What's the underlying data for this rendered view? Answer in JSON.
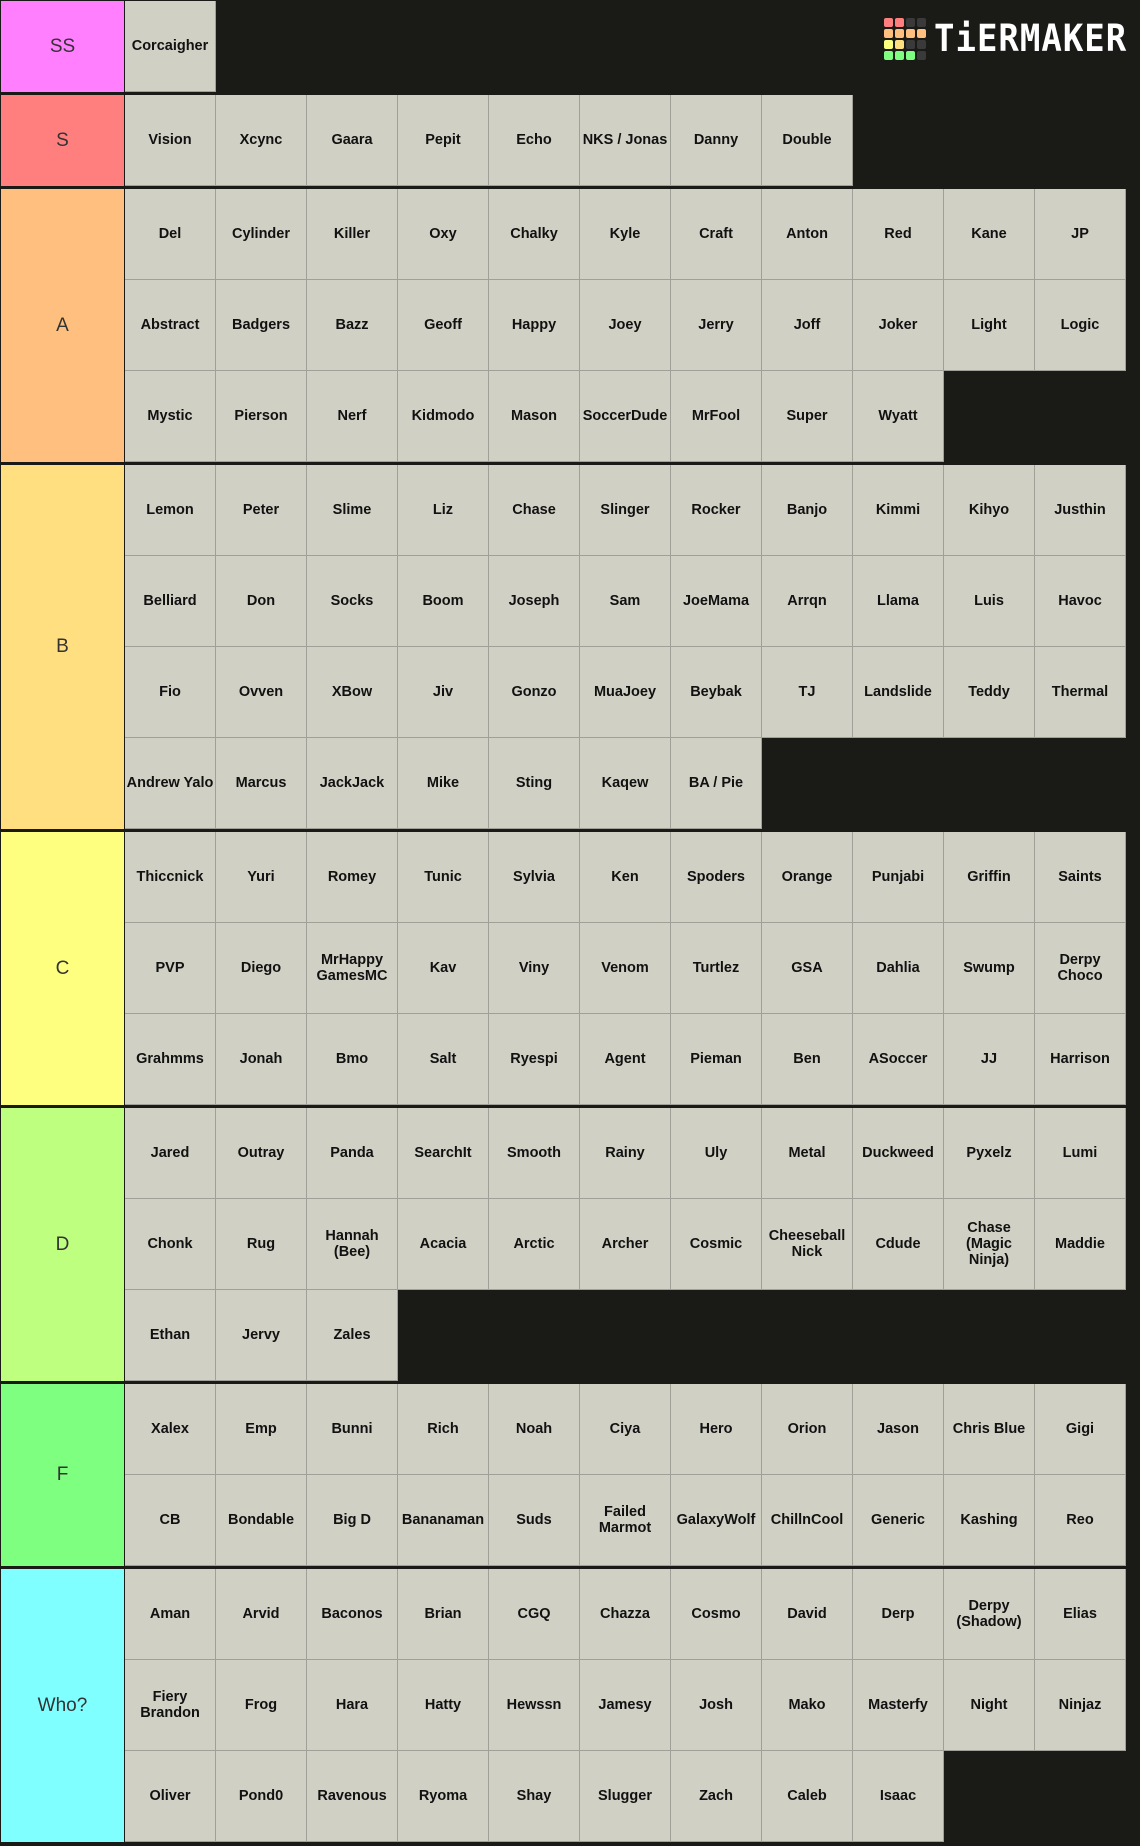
{
  "logo": {
    "text": "TiERMAKER",
    "colors": [
      "#ff7f7f",
      "#ff7f7f",
      "#3a3a3a",
      "#3a3a3a",
      "#ffbf7f",
      "#ffbf7f",
      "#ffbf7f",
      "#ffbf7f",
      "#ffff7f",
      "#ffdf7f",
      "#3a3a3a",
      "#3a3a3a",
      "#7fff7f",
      "#7fff7f",
      "#7fff7f",
      "#3a3a3a"
    ]
  },
  "tiers": [
    {
      "label": "SS",
      "color": "#ff7fff",
      "items": [
        "Corcaigher"
      ]
    },
    {
      "label": "S",
      "color": "#ff7f7f",
      "items": [
        "Vision",
        "Xcync",
        "Gaara",
        "Pepit",
        "Echo",
        "NKS / Jonas",
        "Danny",
        "Double"
      ]
    },
    {
      "label": "A",
      "color": "#ffbf7f",
      "items": [
        "Del",
        "Cylinder",
        "Killer",
        "Oxy",
        "Chalky",
        "Kyle",
        "Craft",
        "Anton",
        "Red",
        "Kane",
        "JP",
        "Abstract",
        "Badgers",
        "Bazz",
        "Geoff",
        "Happy",
        "Joey",
        "Jerry",
        "Joff",
        "Joker",
        "Light",
        "Logic",
        "Mystic",
        "Pierson",
        "Nerf",
        "Kidmodo",
        "Mason",
        "SoccerDude",
        "MrFool",
        "Super",
        "Wyatt"
      ]
    },
    {
      "label": "B",
      "color": "#ffdf7f",
      "items": [
        "Lemon",
        "Peter",
        "Slime",
        "Liz",
        "Chase",
        "Slinger",
        "Rocker",
        "Banjo",
        "Kimmi",
        "Kihyo",
        "Justhin",
        "Belliard",
        "Don",
        "Socks",
        "Boom",
        "Joseph",
        "Sam",
        "JoeMama",
        "Arrqn",
        "Llama",
        "Luis",
        "Havoc",
        "Fio",
        "Ovven",
        "XBow",
        "Jiv",
        "Gonzo",
        "MuaJoey",
        "Beybak",
        "TJ",
        "Landslide",
        "Teddy",
        "Thermal",
        "Andrew Yalo",
        "Marcus",
        "JackJack",
        "Mike",
        "Sting",
        "Kaqew",
        "BA / Pie"
      ]
    },
    {
      "label": "C",
      "color": "#ffff7f",
      "items": [
        "Thiccnick",
        "Yuri",
        "Romey",
        "Tunic",
        "Sylvia",
        "Ken",
        "Spoders",
        "Orange",
        "Punjabi",
        "Griffin",
        "Saints",
        "PVP",
        "Diego",
        "MrHappy GamesMC",
        "Kav",
        "Viny",
        "Venom",
        "Turtlez",
        "GSA",
        "Dahlia",
        "Swump",
        "Derpy Choco",
        "Grahmms",
        "Jonah",
        "Bmo",
        "Salt",
        "Ryespi",
        "Agent",
        "Pieman",
        "Ben",
        "ASoccer",
        "JJ",
        "Harrison"
      ]
    },
    {
      "label": "D",
      "color": "#bfff7f",
      "items": [
        "Jared",
        "Outray",
        "Panda",
        "SearchIt",
        "Smooth",
        "Rainy",
        "Uly",
        "Metal",
        "Duckweed",
        "Pyxelz",
        "Lumi",
        "Chonk",
        "Rug",
        "Hannah (Bee)",
        "Acacia",
        "Arctic",
        "Archer",
        "Cosmic",
        "Cheeseball Nick",
        "Cdude",
        "Chase (Magic Ninja)",
        "Maddie",
        "Ethan",
        "Jervy",
        "Zales"
      ]
    },
    {
      "label": "F",
      "color": "#7fff7f",
      "items": [
        "Xalex",
        "Emp",
        "Bunni",
        "Rich",
        "Noah",
        "Ciya",
        "Hero",
        "Orion",
        "Jason",
        "Chris Blue",
        "Gigi",
        "CB",
        "Bondable",
        "Big D",
        "Bananaman",
        "Suds",
        "Failed Marmot",
        "GalaxyWolf",
        "ChillnCool",
        "Generic",
        "Kashing",
        "Reo"
      ]
    },
    {
      "label": "Who?",
      "color": "#7fffff",
      "items": [
        "Aman",
        "Arvid",
        "Baconos",
        "Brian",
        "CGQ",
        "Chazza",
        "Cosmo",
        "David",
        "Derp",
        "Derpy (Shadow)",
        "Elias",
        "Fiery Brandon",
        "Frog",
        "Hara",
        "Hatty",
        "Hewssn",
        "Jamesy",
        "Josh",
        "Mako",
        "Masterfy",
        "Night",
        "Ninjaz",
        "Oliver",
        "Pond0",
        "Ravenous",
        "Ryoma",
        "Shay",
        "Slugger",
        "Zach",
        "Caleb",
        "Isaac"
      ]
    }
  ]
}
